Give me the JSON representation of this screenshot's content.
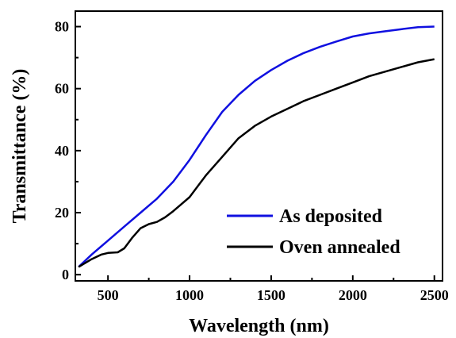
{
  "chart_data": {
    "type": "line",
    "title": "",
    "xlabel": "Wavelength (nm)",
    "ylabel": "Transmittance (%)",
    "xlim": [
      300,
      2550
    ],
    "ylim": [
      -2,
      85
    ],
    "xticks": [
      500,
      1000,
      1500,
      2000,
      2500
    ],
    "yticks": [
      0,
      20,
      40,
      60,
      80
    ],
    "grid": false,
    "legend_position": "bottom-right",
    "series": [
      {
        "name": "As deposited",
        "color": "#1010e0",
        "x": [
          320,
          400,
          500,
          600,
          700,
          800,
          900,
          1000,
          1100,
          1200,
          1300,
          1400,
          1500,
          1600,
          1700,
          1800,
          1900,
          2000,
          2100,
          2200,
          2300,
          2400,
          2500
        ],
        "y": [
          2.5,
          6.5,
          11,
          15.5,
          20,
          24.5,
          30,
          37,
          45,
          52.5,
          58,
          62.5,
          66,
          69,
          71.5,
          73.5,
          75.2,
          76.8,
          77.8,
          78.5,
          79.2,
          79.8,
          80
        ]
      },
      {
        "name": "Oven annealed",
        "color": "#000000",
        "x": [
          320,
          400,
          460,
          500,
          560,
          600,
          650,
          700,
          750,
          800,
          850,
          900,
          1000,
          1100,
          1200,
          1300,
          1400,
          1500,
          1600,
          1700,
          1800,
          1900,
          2000,
          2100,
          2200,
          2300,
          2400,
          2500
        ],
        "y": [
          2.5,
          5,
          6.5,
          7,
          7.2,
          8.5,
          12,
          15,
          16.3,
          17,
          18.5,
          20.5,
          25,
          32,
          38,
          44,
          48,
          51,
          53.5,
          56,
          58,
          60,
          62,
          64,
          65.5,
          67,
          68.5,
          69.5
        ]
      }
    ]
  }
}
